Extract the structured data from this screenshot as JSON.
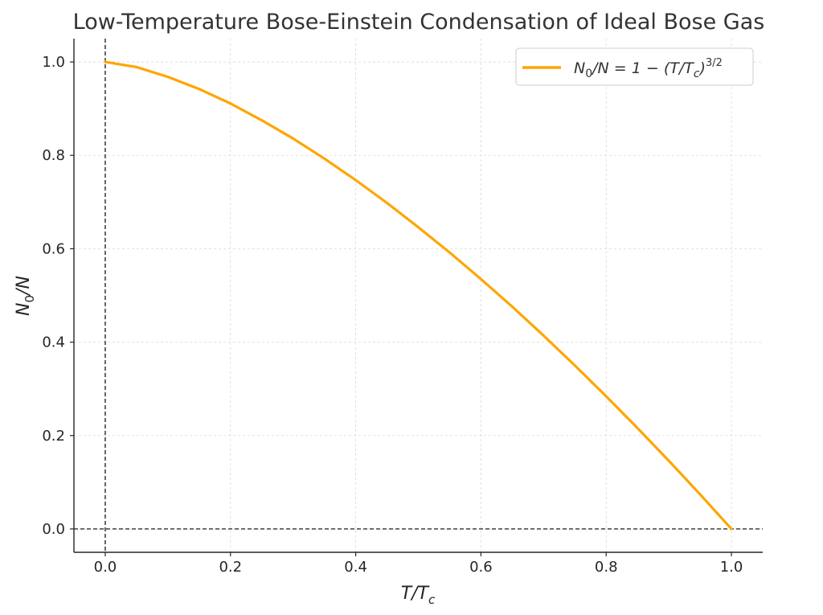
{
  "chart_data": {
    "type": "line",
    "title": "Low-Temperature Bose-Einstein Condensation of Ideal Bose Gas",
    "xlabel": "T/T_c",
    "ylabel": "N_0/N",
    "xlim": [
      -0.05,
      1.05
    ],
    "ylim": [
      -0.05,
      1.05
    ],
    "x_ticks": [
      0.0,
      0.2,
      0.4,
      0.6,
      0.8,
      1.0
    ],
    "y_ticks": [
      0.0,
      0.2,
      0.4,
      0.6,
      0.8,
      1.0
    ],
    "x_tick_labels": [
      "0.0",
      "0.2",
      "0.4",
      "0.6",
      "0.8",
      "1.0"
    ],
    "y_tick_labels": [
      "0.0",
      "0.2",
      "0.4",
      "0.6",
      "0.8",
      "1.0"
    ],
    "grid": true,
    "legend_position": "top-right",
    "series": [
      {
        "name": "N_0/N = 1 - (T/T_c)^{3/2}",
        "color": "#FFA500",
        "x": [
          0.0,
          0.05,
          0.1,
          0.15,
          0.2,
          0.25,
          0.3,
          0.35,
          0.4,
          0.45,
          0.5,
          0.55,
          0.6,
          0.65,
          0.7,
          0.75,
          0.8,
          0.85,
          0.9,
          0.95,
          1.0
        ],
        "y": [
          1.0,
          0.989,
          0.968,
          0.942,
          0.911,
          0.875,
          0.836,
          0.793,
          0.747,
          0.698,
          0.646,
          0.592,
          0.535,
          0.476,
          0.414,
          0.35,
          0.284,
          0.216,
          0.146,
          0.074,
          0.0
        ]
      }
    ],
    "reference_lines": [
      {
        "axis": "x",
        "value": 0.0,
        "style": "dashed",
        "color": "#000000"
      },
      {
        "axis": "y",
        "value": 0.0,
        "style": "dashed",
        "color": "#000000"
      }
    ]
  }
}
